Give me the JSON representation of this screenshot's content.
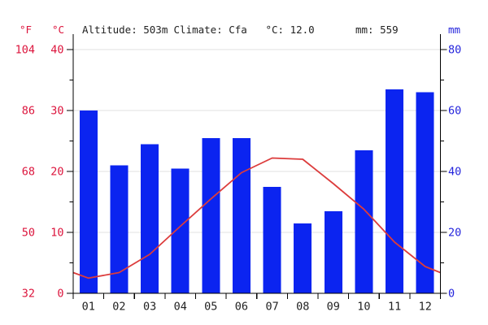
{
  "header": {
    "fahrenheit_label": "°F",
    "celsius_label": "°C",
    "mm_label": "mm",
    "altitude": "Altitude: 503m",
    "climate": "Climate: Cfa",
    "mean_temp": "°C: 12.0",
    "annual_precip": "mm: 559"
  },
  "colors": {
    "bar": "#0b24f0",
    "line": "#dc3c3c",
    "red_label": "#dc143c",
    "blue_label": "#2424dc",
    "grid": "#e0e0e0",
    "axis": "#000000",
    "text": "#222222"
  },
  "chart_data": {
    "type": "bar",
    "title": "Altitude: 503m  Climate: Cfa  °C: 12.0  mm: 559",
    "categories": [
      "01",
      "02",
      "03",
      "04",
      "05",
      "06",
      "07",
      "08",
      "09",
      "10",
      "11",
      "12"
    ],
    "series": [
      {
        "name": "Precipitation",
        "type": "bar",
        "unit": "mm",
        "axis": "right",
        "color": "#0b24f0",
        "values": [
          60,
          42,
          49,
          41,
          51,
          51,
          35,
          23,
          27,
          47,
          67,
          66
        ],
        "annual_total": 559
      },
      {
        "name": "Temperature",
        "type": "line",
        "unit": "°C",
        "axis": "left",
        "color": "#dc3c3c",
        "values": [
          2.5,
          3.4,
          6.4,
          11.0,
          15.5,
          19.8,
          22.2,
          22.0,
          18.0,
          13.8,
          8.4,
          4.4
        ],
        "edge_value": 3.4,
        "annual_mean": 12.0
      }
    ],
    "left_axis": {
      "label": "°C",
      "ticks": [
        0,
        10,
        20,
        30,
        40
      ],
      "minor_ticks": [
        5,
        15,
        25,
        35
      ],
      "range": [
        0,
        42.5
      ]
    },
    "fahrenheit_axis": {
      "label": "°F",
      "ticks": [
        32,
        50,
        68,
        86,
        104
      ]
    },
    "right_axis": {
      "label": "mm",
      "ticks": [
        0,
        20,
        40,
        60,
        80
      ],
      "minor_ticks": [
        10,
        30,
        50,
        70
      ],
      "range": [
        0,
        85
      ]
    },
    "grid": true,
    "legend_position": "none"
  }
}
